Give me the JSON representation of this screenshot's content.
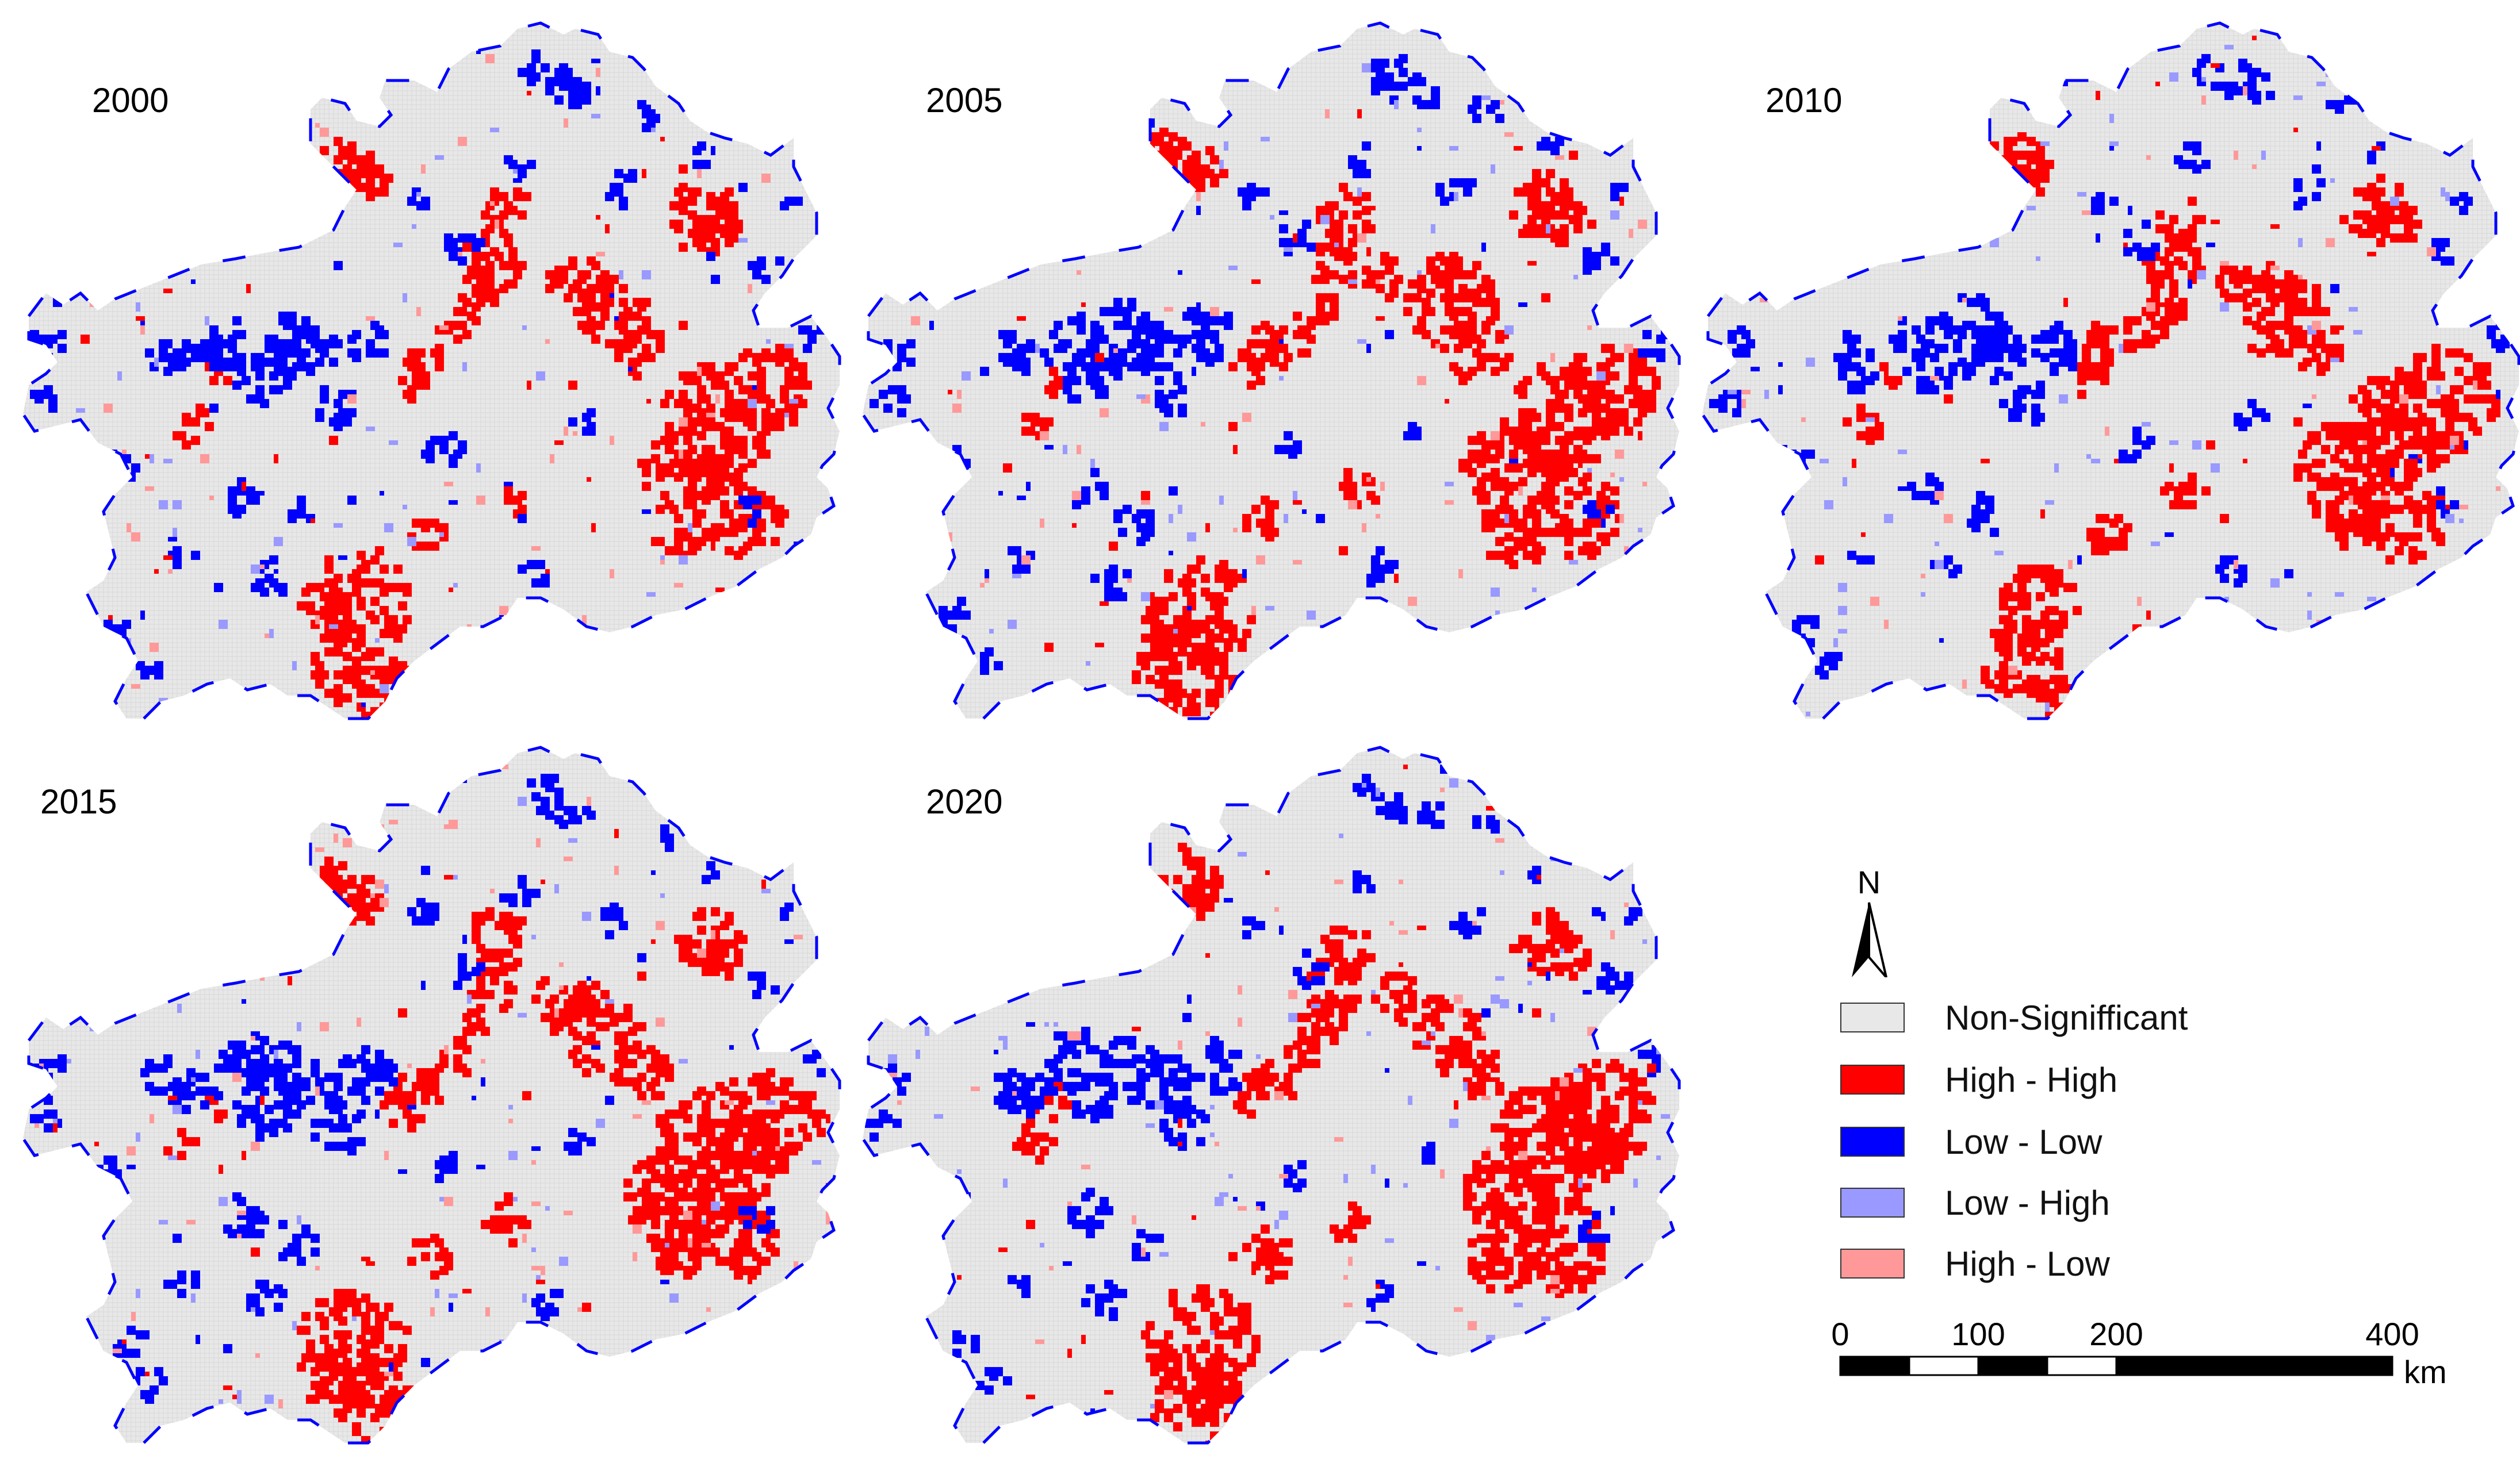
{
  "colors": {
    "non_significant": "#e8e8e8",
    "high_high": "#ff0000",
    "low_low": "#0000ff",
    "low_high": "#9999ff",
    "high_low": "#ff9999",
    "outline": "#0000ff"
  },
  "maps": [
    {
      "year": "2000"
    },
    {
      "year": "2005"
    },
    {
      "year": "2010"
    },
    {
      "year": "2015"
    },
    {
      "year": "2020"
    }
  ],
  "legend": {
    "north_label": "N",
    "items": [
      {
        "label": "Non-Signifficant",
        "color": "#e8e8e8"
      },
      {
        "label": "High - High",
        "color": "#ff0000"
      },
      {
        "label": "Low - Low",
        "color": "#0000ff"
      },
      {
        "label": "Low - High",
        "color": "#9999ff"
      },
      {
        "label": "High - Low",
        "color": "#ff9999"
      }
    ]
  },
  "scale_bar": {
    "ticks": [
      "0",
      "100",
      "200",
      "400"
    ],
    "unit": "km"
  }
}
